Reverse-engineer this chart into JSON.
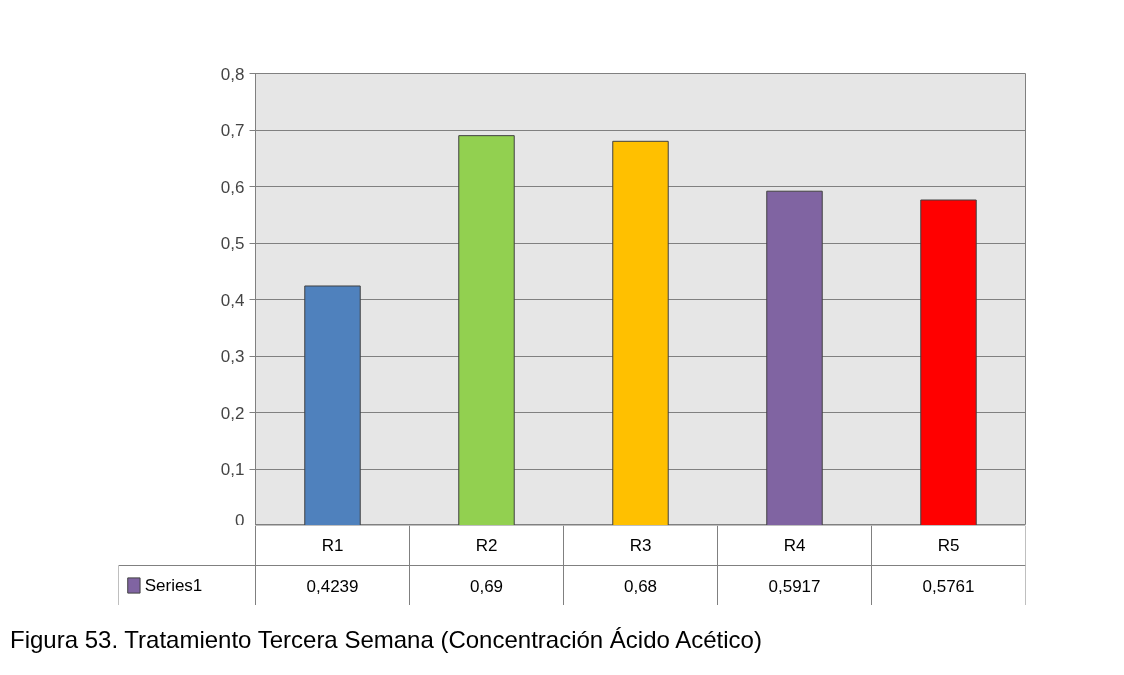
{
  "chart_data": {
    "type": "bar",
    "categories": [
      "R1",
      "R2",
      "R3",
      "R4",
      "R5"
    ],
    "series": [
      {
        "name": "Series1",
        "color": "#8064a2",
        "colors": [
          "#4f81bd",
          "#92d050",
          "#ffc000",
          "#8064a2",
          "#ff0000"
        ],
        "values": [
          0.4239,
          0.69,
          0.68,
          0.5917,
          0.5761
        ],
        "value_labels": [
          "0,4239",
          "0,69",
          "0,68",
          "0,5917",
          "0,5761"
        ]
      }
    ],
    "ylim": [
      0,
      0.8
    ],
    "yticks": [
      0,
      {
        "value": 0.1,
        "label": "0,1"
      },
      {
        "value": 0.2,
        "label": "0,2"
      },
      {
        "value": 0.3,
        "label": "0,3"
      },
      {
        "value": 0.4,
        "label": "0,4"
      },
      {
        "value": 0.5,
        "label": "0,5"
      },
      {
        "value": 0.6,
        "label": "0,6"
      },
      {
        "value": 0.7,
        "label": "0,7"
      },
      {
        "value": 0.8,
        "label": "0,8"
      }
    ],
    "grid": "y",
    "legend": "bottom left",
    "annotations": [
      "Figura 53. Tratamiento Tercera Semana (Concentración Ácido Acético)"
    ]
  }
}
